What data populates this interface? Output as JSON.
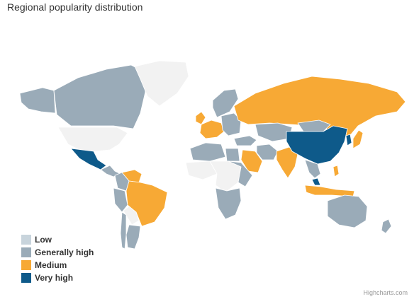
{
  "title": "Regional popularity distribution",
  "credits": "Highcharts.com",
  "colors": {
    "none": "#f2f2f2",
    "low": "#c8d4dc",
    "generally_high": "#9aabb8",
    "medium": "#f7a935",
    "very_high": "#0e5a8a"
  },
  "legend": [
    {
      "label": "Low",
      "color": "#c8d4dc"
    },
    {
      "label": "Generally high",
      "color": "#9aabb8"
    },
    {
      "label": "Medium",
      "color": "#f7a935"
    },
    {
      "label": "Very high",
      "color": "#0e5a8a"
    }
  ],
  "regions": [
    {
      "name": "Canada",
      "level": "generally_high"
    },
    {
      "name": "United States",
      "level": "none"
    },
    {
      "name": "Alaska",
      "level": "generally_high"
    },
    {
      "name": "Greenland",
      "level": "none"
    },
    {
      "name": "Mexico",
      "level": "very_high"
    },
    {
      "name": "Central America",
      "level": "generally_high"
    },
    {
      "name": "Venezuela",
      "level": "medium"
    },
    {
      "name": "Colombia",
      "level": "generally_high"
    },
    {
      "name": "Peru",
      "level": "generally_high"
    },
    {
      "name": "Brazil",
      "level": "medium"
    },
    {
      "name": "Bolivia",
      "level": "none"
    },
    {
      "name": "Argentina",
      "level": "generally_high"
    },
    {
      "name": "Chile",
      "level": "generally_high"
    },
    {
      "name": "United Kingdom",
      "level": "medium"
    },
    {
      "name": "Scandinavia",
      "level": "generally_high"
    },
    {
      "name": "Western Europe",
      "level": "medium"
    },
    {
      "name": "Eastern Europe",
      "level": "generally_high"
    },
    {
      "name": "Russia",
      "level": "medium"
    },
    {
      "name": "Kazakhstan",
      "level": "generally_high"
    },
    {
      "name": "Turkey",
      "level": "generally_high"
    },
    {
      "name": "Iran",
      "level": "generally_high"
    },
    {
      "name": "Saudi Arabia",
      "level": "medium"
    },
    {
      "name": "North Africa",
      "level": "generally_high"
    },
    {
      "name": "Egypt",
      "level": "generally_high"
    },
    {
      "name": "West Africa",
      "level": "none"
    },
    {
      "name": "Central Africa",
      "level": "none"
    },
    {
      "name": "East Africa",
      "level": "generally_high"
    },
    {
      "name": "Southern Africa",
      "level": "generally_high"
    },
    {
      "name": "India",
      "level": "medium"
    },
    {
      "name": "China",
      "level": "very_high"
    },
    {
      "name": "Mongolia",
      "level": "generally_high"
    },
    {
      "name": "Japan",
      "level": "medium"
    },
    {
      "name": "Korea",
      "level": "very_high"
    },
    {
      "name": "Southeast Asia",
      "level": "generally_high"
    },
    {
      "name": "Indonesia",
      "level": "medium"
    },
    {
      "name": "Malaysia",
      "level": "very_high"
    },
    {
      "name": "Philippines",
      "level": "medium"
    },
    {
      "name": "Australia",
      "level": "generally_high"
    },
    {
      "name": "New Zealand",
      "level": "generally_high"
    }
  ]
}
